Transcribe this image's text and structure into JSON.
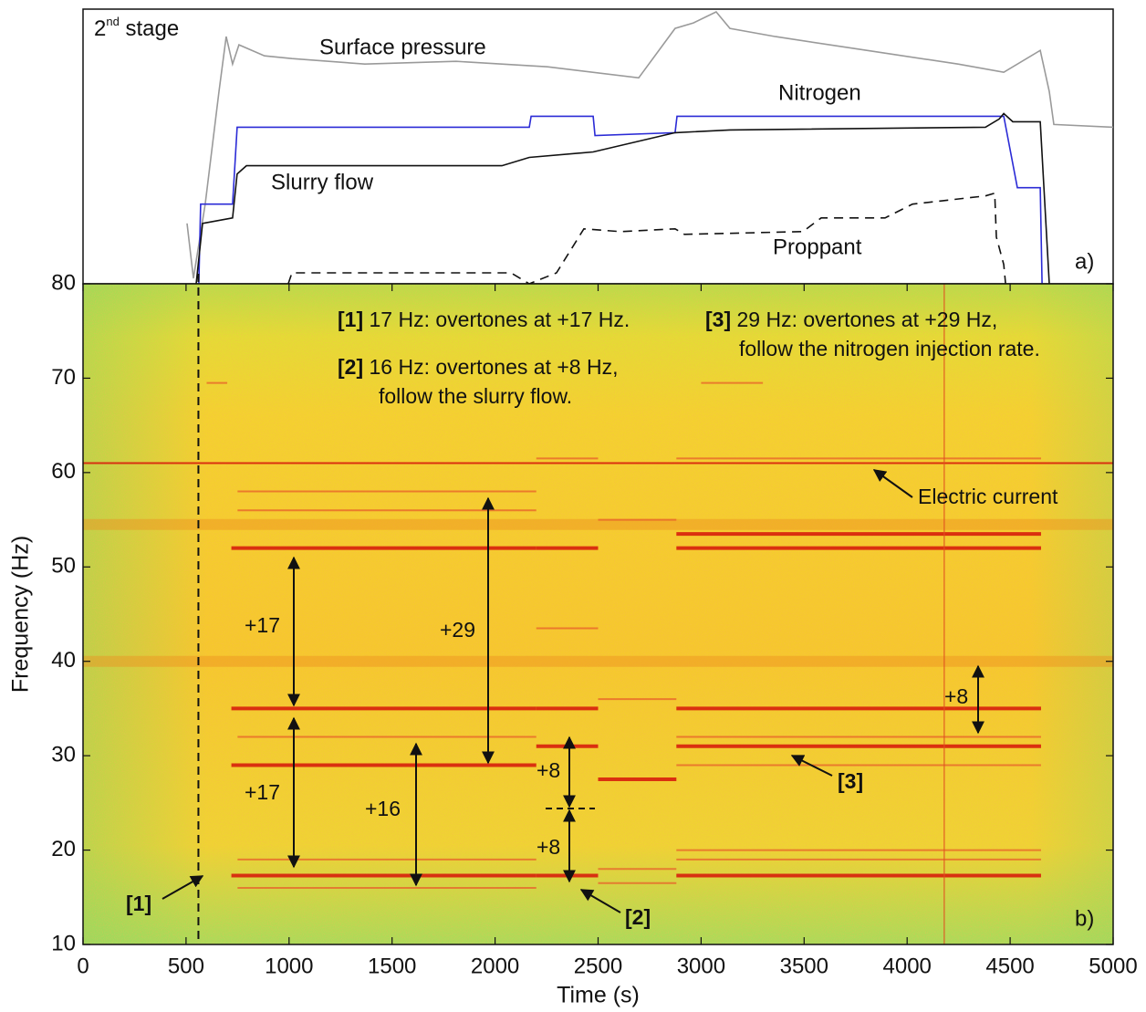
{
  "chart_data": [
    {
      "type": "line",
      "title_parts": [
        "2",
        "nd",
        " stage"
      ],
      "panel_label": "a)",
      "xlim": [
        0,
        5000
      ],
      "ylim": [
        0,
        100
      ],
      "series": [
        {
          "name": "Surface pressure",
          "color": "#9a9a9a",
          "dashed": false,
          "x": [
            505,
            536,
            593,
            660,
            695,
            726,
            757,
            881,
            1014,
            1368,
            1811,
            2254,
            2697,
            2874,
            2963,
            3073,
            3140,
            3361,
            3804,
            4247,
            4469,
            4646,
            4690,
            4712,
            5000
          ],
          "values": [
            22,
            2,
            29,
            70,
            90,
            80,
            87,
            83,
            82,
            80,
            81,
            79,
            75,
            93,
            95,
            99,
            93,
            90,
            85,
            80,
            77,
            85,
            70,
            58,
            57
          ]
        },
        {
          "name": "Nitrogen",
          "color": "#2b2bd6",
          "dashed": false,
          "x": [
            562,
            571,
            726,
            748,
            2166,
            2175,
            2476,
            2485,
            2874,
            2883,
            4469,
            4535,
            4646,
            4655
          ],
          "values": [
            0,
            29,
            29,
            57,
            57,
            61,
            61,
            54,
            55,
            61,
            61,
            35,
            35,
            0
          ]
        },
        {
          "name": "Slurry flow",
          "color": "#111111",
          "dashed": false,
          "x": [
            549,
            580,
            726,
            748,
            793,
            1368,
            2033,
            2166,
            2476,
            2874,
            3140,
            4380,
            4447,
            4469,
            4513,
            4646,
            4690
          ],
          "values": [
            0,
            22,
            24,
            40,
            43,
            43,
            43,
            46,
            48,
            55,
            56,
            57,
            60,
            62,
            59,
            59,
            0
          ]
        },
        {
          "name": "Proppant",
          "color": "#111111",
          "dashed": true,
          "x": [
            996,
            1014,
            2077,
            2166,
            2298,
            2431,
            2608,
            2874,
            2919,
            3494,
            3583,
            3893,
            4026,
            4380,
            4425,
            4433,
            4469,
            4478
          ],
          "values": [
            0,
            4,
            4,
            0,
            4,
            20,
            19,
            20,
            18,
            19,
            24,
            24,
            29,
            32,
            33,
            17,
            7,
            0
          ]
        }
      ]
    },
    {
      "type": "spectrogram",
      "panel_label": "b)",
      "x_label": "Time (s)",
      "y_label": "Frequency (Hz)",
      "xlim": [
        0,
        5000
      ],
      "ylim": [
        10,
        80
      ],
      "xticks": [
        0,
        500,
        1000,
        1500,
        2000,
        2500,
        3000,
        3500,
        4000,
        4500,
        5000
      ],
      "yticks": [
        10,
        20,
        30,
        40,
        50,
        60,
        70,
        80
      ],
      "marker_time": 560,
      "vertical_line_time": 4180,
      "broad_lines": [
        {
          "start": 0,
          "end": 5000,
          "freq": 54.5
        },
        {
          "start": 0,
          "end": 5000,
          "freq": 40
        }
      ],
      "strong_lines": [
        {
          "start": 0,
          "end": 5000,
          "freq": 61
        },
        {
          "start": 720,
          "end": 2200,
          "freq": 52
        },
        {
          "start": 720,
          "end": 2200,
          "freq": 35
        },
        {
          "start": 720,
          "end": 2200,
          "freq": 29
        },
        {
          "start": 720,
          "end": 2200,
          "freq": 17.3
        },
        {
          "start": 2200,
          "end": 2500,
          "freq": 52
        },
        {
          "start": 2200,
          "end": 2500,
          "freq": 35
        },
        {
          "start": 2200,
          "end": 2500,
          "freq": 31
        },
        {
          "start": 2200,
          "end": 2500,
          "freq": 17.3
        },
        {
          "start": 2500,
          "end": 2880,
          "freq": 27.5
        },
        {
          "start": 2880,
          "end": 4650,
          "freq": 53.5
        },
        {
          "start": 2880,
          "end": 4650,
          "freq": 52
        },
        {
          "start": 2880,
          "end": 4650,
          "freq": 35
        },
        {
          "start": 2880,
          "end": 4650,
          "freq": 31
        },
        {
          "start": 2880,
          "end": 4650,
          "freq": 17.3
        }
      ],
      "weak_lines": [
        {
          "start": 750,
          "end": 2200,
          "freq": 58
        },
        {
          "start": 750,
          "end": 2200,
          "freq": 56
        },
        {
          "start": 750,
          "end": 2200,
          "freq": 32
        },
        {
          "start": 750,
          "end": 2200,
          "freq": 19
        },
        {
          "start": 750,
          "end": 2200,
          "freq": 16
        },
        {
          "start": 2500,
          "end": 2880,
          "freq": 55
        },
        {
          "start": 2500,
          "end": 2880,
          "freq": 36
        },
        {
          "start": 2500,
          "end": 2880,
          "freq": 18
        },
        {
          "start": 2500,
          "end": 2880,
          "freq": 16.5
        },
        {
          "start": 2880,
          "end": 4650,
          "freq": 32
        },
        {
          "start": 2880,
          "end": 4650,
          "freq": 29
        },
        {
          "start": 2880,
          "end": 4650,
          "freq": 20
        },
        {
          "start": 2880,
          "end": 4650,
          "freq": 19
        },
        {
          "start": 2200,
          "end": 2500,
          "freq": 61.5
        },
        {
          "start": 2880,
          "end": 4650,
          "freq": 61.5
        },
        {
          "start": 600,
          "end": 700,
          "freq": 69.5
        },
        {
          "start": 3000,
          "end": 3300,
          "freq": 69.5
        },
        {
          "start": 2200,
          "end": 2500,
          "freq": 43.5
        }
      ],
      "notes": [
        {
          "tag": "[1]",
          "lines": [
            "17 Hz: overtones at +17 Hz."
          ]
        },
        {
          "tag": "[2]",
          "lines": [
            "16 Hz: overtones at +8 Hz,",
            "follow the slurry flow."
          ]
        },
        {
          "tag": "[3]",
          "lines": [
            "29 Hz: overtones at +29 Hz,",
            "follow the nitrogen injection rate."
          ]
        }
      ],
      "annotations": [
        "Electric current",
        "+17",
        "+17",
        "+29",
        "+16",
        "+8",
        "+8",
        "+8",
        "[1]",
        "[2]",
        "[3]"
      ]
    }
  ]
}
